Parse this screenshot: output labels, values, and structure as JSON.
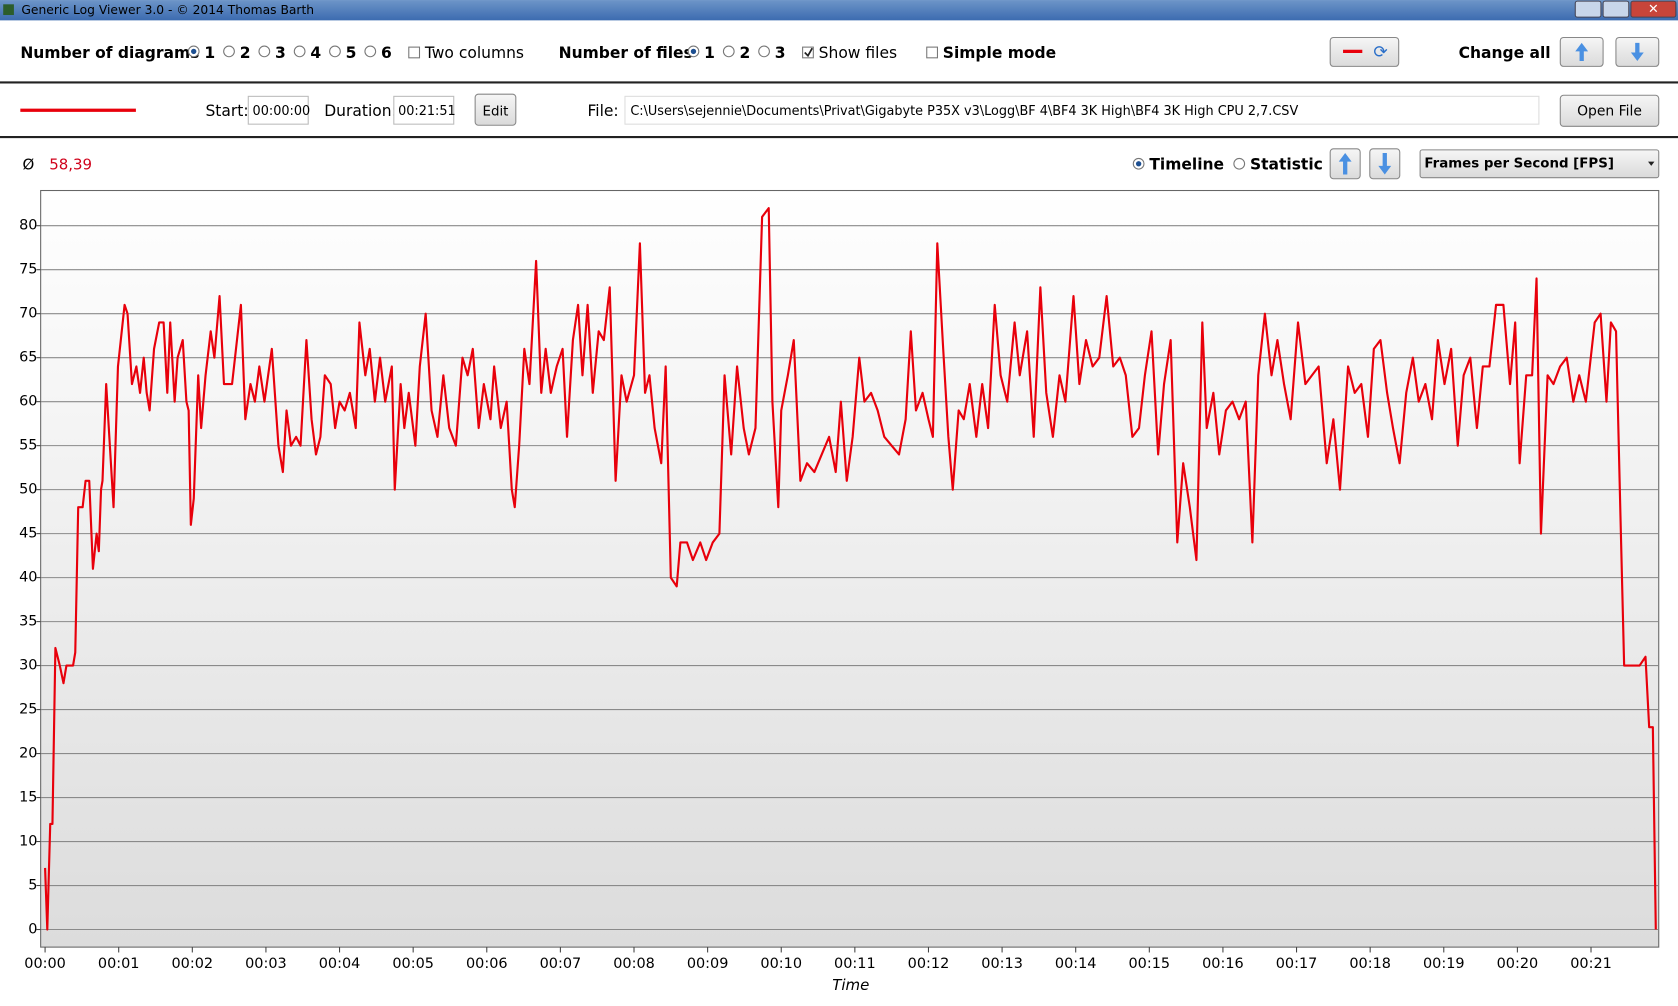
{
  "window": {
    "title": "Generic Log Viewer 3.0 - © 2014 Thomas Barth"
  },
  "toolbar": {
    "diagrams_label": "Number of diagrams",
    "diagram_options": [
      "1",
      "2",
      "3",
      "4",
      "5",
      "6"
    ],
    "two_columns": "Two columns",
    "files_label": "Number of files",
    "file_options": [
      "1",
      "2",
      "3"
    ],
    "show_files": "Show files",
    "simple_mode": "Simple mode",
    "change_all": "Change all"
  },
  "file_bar": {
    "start_label": "Start:",
    "start": "00:00:00",
    "duration_label": "Duration:",
    "duration": "00:21:51",
    "edit": "Edit",
    "file_label": "File:",
    "file_path": "C:\\Users\\sejennie\\Documents\\Privat\\Gigabyte P35X v3\\Logg\\BF 4\\BF4 3K High\\BF4 3K High CPU 2,7.CSV",
    "open_file": "Open File"
  },
  "chart_header": {
    "avg_symbol": "Ø",
    "average": "58,39",
    "timeline": "Timeline",
    "statistic": "Statistic",
    "metric": "Frames per Second [FPS]"
  },
  "chart_data": {
    "type": "line",
    "x_label": "Time",
    "x": [
      0,
      0.03,
      0.07,
      0.1,
      0.14,
      0.2,
      0.25,
      0.29,
      0.38,
      0.41,
      0.45,
      0.51,
      0.55,
      0.6,
      0.65,
      0.7,
      0.73,
      0.76,
      0.78,
      0.83,
      0.88,
      0.93,
      0.99,
      1.08,
      1.12,
      1.18,
      1.24,
      1.29,
      1.34,
      1.38,
      1.42,
      1.48,
      1.55,
      1.61,
      1.66,
      1.7,
      1.76,
      1.8,
      1.87,
      1.92,
      1.95,
      1.98,
      2.02,
      2.08,
      2.12,
      2.18,
      2.25,
      2.3,
      2.37,
      2.43,
      2.49,
      2.54,
      2.62,
      2.66,
      2.72,
      2.79,
      2.85,
      2.91,
      2.98,
      3.08,
      3.17,
      3.23,
      3.28,
      3.34,
      3.41,
      3.47,
      3.55,
      3.62,
      3.68,
      3.74,
      3.8,
      3.88,
      3.94,
      4.0,
      4.07,
      4.14,
      4.22,
      4.27,
      4.35,
      4.41,
      4.48,
      4.55,
      4.62,
      4.71,
      4.75,
      4.83,
      4.88,
      4.94,
      5.03,
      5.09,
      5.17,
      5.25,
      5.33,
      5.41,
      5.49,
      5.58,
      5.67,
      5.74,
      5.81,
      5.89,
      5.96,
      6.05,
      6.1,
      6.19,
      6.27,
      6.34,
      6.38,
      6.44,
      6.51,
      6.58,
      6.67,
      6.74,
      6.8,
      6.87,
      6.95,
      7.03,
      7.09,
      7.17,
      7.24,
      7.3,
      7.37,
      7.44,
      7.52,
      7.59,
      7.67,
      7.75,
      7.83,
      7.9,
      8.0,
      8.08,
      8.15,
      8.21,
      8.28,
      8.37,
      8.43,
      8.5,
      8.58,
      8.63,
      8.72,
      8.8,
      8.9,
      8.98,
      9.07,
      9.16,
      9.23,
      9.32,
      9.4,
      9.49,
      9.56,
      9.65,
      9.74,
      9.83,
      9.88,
      9.96,
      10.0,
      10.09,
      10.17,
      10.26,
      10.35,
      10.45,
      10.55,
      10.65,
      10.74,
      10.81,
      10.89,
      10.97,
      11.06,
      11.13,
      11.22,
      11.31,
      11.4,
      11.5,
      11.6,
      11.69,
      11.76,
      11.83,
      11.92,
      12.0,
      12.06,
      12.12,
      12.2,
      12.27,
      12.33,
      12.41,
      12.48,
      12.56,
      12.65,
      12.73,
      12.81,
      12.9,
      12.98,
      13.07,
      13.17,
      13.24,
      13.34,
      13.43,
      13.52,
      13.6,
      13.69,
      13.78,
      13.86,
      13.97,
      14.05,
      14.14,
      14.23,
      14.32,
      14.42,
      14.51,
      14.6,
      14.68,
      14.77,
      14.86,
      14.94,
      15.03,
      15.12,
      15.2,
      15.29,
      15.38,
      15.46,
      15.55,
      15.64,
      15.72,
      15.78,
      15.87,
      15.95,
      16.04,
      16.13,
      16.22,
      16.31,
      16.4,
      16.48,
      16.57,
      16.66,
      16.74,
      16.83,
      16.92,
      17.02,
      17.12,
      17.21,
      17.3,
      17.41,
      17.5,
      17.59,
      17.7,
      17.79,
      17.88,
      17.97,
      18.05,
      18.14,
      18.23,
      18.31,
      18.4,
      18.49,
      18.58,
      18.66,
      18.75,
      18.84,
      18.92,
      19.01,
      19.1,
      19.19,
      19.27,
      19.36,
      19.45,
      19.53,
      19.62,
      19.71,
      19.81,
      19.9,
      19.97,
      20.03,
      20.12,
      20.2,
      20.26,
      20.32,
      20.41,
      20.49,
      20.58,
      20.67,
      20.76,
      20.84,
      20.93,
      21.05,
      21.13,
      21.21,
      21.27,
      21.34,
      21.4,
      21.45,
      21.66,
      21.74,
      21.79,
      21.84,
      21.88
    ],
    "series": [
      {
        "color": "#e8000b",
        "values": [
          7,
          0,
          12,
          12,
          32,
          30,
          28,
          30,
          30,
          31.5,
          48,
          48,
          51,
          51,
          41,
          45,
          43,
          50,
          51,
          62,
          55,
          48,
          64,
          71,
          70,
          62,
          64,
          61,
          65,
          61,
          59,
          66,
          69,
          69,
          61,
          69,
          60,
          65,
          67,
          60,
          59,
          46,
          49,
          63,
          57,
          63,
          68,
          65,
          72,
          62,
          62,
          62,
          68,
          71,
          58,
          62,
          60,
          64,
          60,
          66,
          55,
          52,
          59,
          55,
          56,
          55,
          67,
          58,
          54,
          56,
          63,
          62,
          57,
          60,
          59,
          61,
          57,
          69,
          63,
          66,
          60,
          65,
          60,
          64,
          50,
          62,
          57,
          61,
          55,
          64,
          70,
          59,
          56,
          63,
          57,
          55,
          65,
          63,
          66,
          57,
          62,
          58,
          64,
          57,
          60,
          50,
          48,
          55,
          66,
          62,
          76,
          61,
          66,
          61,
          64,
          66,
          56,
          67,
          71,
          63,
          71,
          61,
          68,
          67,
          73,
          51,
          63,
          60,
          63,
          78,
          61,
          63,
          57,
          53,
          64,
          40,
          39,
          44,
          44,
          42,
          44,
          42,
          44,
          45,
          63,
          54,
          64,
          57,
          54,
          57,
          81,
          82,
          60,
          48,
          59,
          63,
          67,
          51,
          53,
          52,
          54,
          56,
          52,
          60,
          51,
          56,
          65,
          60,
          61,
          59,
          56,
          55,
          54,
          58,
          68,
          59,
          61,
          58,
          56,
          78,
          66,
          56,
          50,
          59,
          58,
          62,
          56,
          62,
          57,
          71,
          63,
          60,
          69,
          63,
          68,
          56,
          73,
          61,
          56,
          63,
          60,
          72,
          62,
          67,
          64,
          65,
          72,
          64,
          65,
          63,
          56,
          57,
          63,
          68,
          54,
          62,
          67,
          44,
          53,
          48,
          42,
          69,
          57,
          61,
          54,
          59,
          60,
          58,
          60,
          44,
          63,
          70,
          63,
          67,
          62,
          58,
          69,
          62,
          63,
          64,
          53,
          58,
          50,
          64,
          61,
          62,
          56,
          66,
          67,
          61,
          57,
          53,
          61,
          65,
          60,
          62,
          58,
          67,
          62,
          66,
          55,
          63,
          65,
          57,
          64,
          64,
          71,
          71,
          62,
          69,
          53,
          63,
          63,
          74,
          45,
          63,
          62,
          64,
          65,
          60,
          63,
          60,
          69,
          70,
          60,
          69,
          68,
          47,
          30,
          30,
          31,
          23,
          23,
          0
        ]
      }
    ],
    "xlim": [
      -0.06,
      21.92
    ],
    "ylim": [
      -2,
      84
    ],
    "xticks": [
      {
        "value": 0,
        "label": "00:00"
      },
      {
        "value": 1,
        "label": "00:01"
      },
      {
        "value": 2,
        "label": "00:02"
      },
      {
        "value": 3,
        "label": "00:03"
      },
      {
        "value": 4,
        "label": "00:04"
      },
      {
        "value": 5,
        "label": "00:05"
      },
      {
        "value": 6,
        "label": "00:06"
      },
      {
        "value": 7,
        "label": "00:07"
      },
      {
        "value": 8,
        "label": "00:08"
      },
      {
        "value": 9,
        "label": "00:09"
      },
      {
        "value": 10,
        "label": "00:10"
      },
      {
        "value": 11,
        "label": "00:11"
      },
      {
        "value": 12,
        "label": "00:12"
      },
      {
        "value": 13,
        "label": "00:13"
      },
      {
        "value": 14,
        "label": "00:14"
      },
      {
        "value": 15,
        "label": "00:15"
      },
      {
        "value": 16,
        "label": "00:16"
      },
      {
        "value": 17,
        "label": "00:17"
      },
      {
        "value": 18,
        "label": "00:18"
      },
      {
        "value": 19,
        "label": "00:19"
      },
      {
        "value": 20,
        "label": "00:20"
      },
      {
        "value": 21,
        "label": "00:21"
      }
    ],
    "yticks": [
      0,
      5,
      10,
      15,
      20,
      25,
      30,
      35,
      40,
      45,
      50,
      55,
      60,
      65,
      70,
      75,
      80
    ],
    "grid": true
  }
}
